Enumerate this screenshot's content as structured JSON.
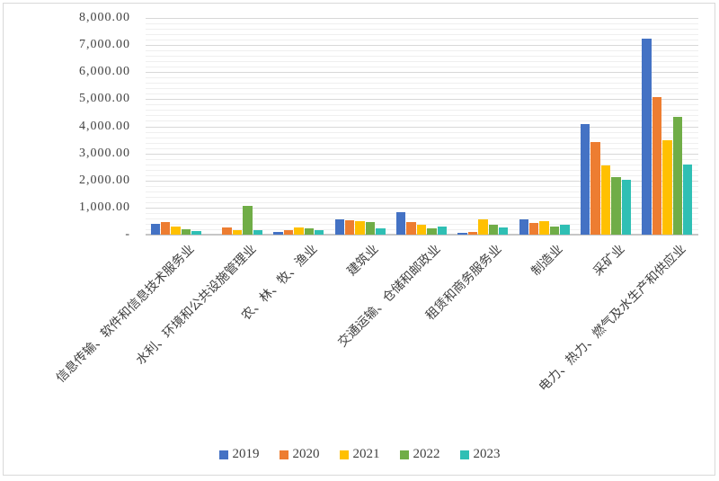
{
  "chart_data": {
    "type": "bar",
    "title": "",
    "xlabel": "",
    "ylabel": "",
    "categories": [
      "信息传输、软件和信息技术服务业",
      "水利、环境和公共设施管理业",
      "农、林、牧、渔业",
      "建筑业",
      "交通运输、仓储和邮政业",
      "租赁和商务服务业",
      "制造业",
      "采矿业",
      "电力、热力、燃气及水生产和供应业"
    ],
    "series": [
      {
        "name": "2019",
        "color": "#4472C4",
        "values": [
          390,
          0,
          100,
          580,
          830,
          60,
          560,
          4100,
          7230
        ]
      },
      {
        "name": "2020",
        "color": "#ED7D31",
        "values": [
          480,
          270,
          150,
          540,
          470,
          90,
          430,
          3420,
          5090
        ]
      },
      {
        "name": "2021",
        "color": "#FFC000",
        "values": [
          300,
          170,
          260,
          500,
          360,
          560,
          500,
          2540,
          3480
        ]
      },
      {
        "name": "2022",
        "color": "#70AD47",
        "values": [
          200,
          1060,
          230,
          460,
          230,
          360,
          310,
          2140,
          4360
        ]
      },
      {
        "name": "2023",
        "color": "#2FBFB4",
        "values": [
          130,
          150,
          160,
          230,
          300,
          280,
          370,
          2040,
          2590
        ]
      }
    ],
    "ylim": [
      0,
      8000
    ],
    "y_major_unit": 1000,
    "y_minor_unit": 200,
    "y_tick_values": [
      0,
      1000,
      2000,
      3000,
      4000,
      5000,
      6000,
      7000,
      8000
    ],
    "y_tick_labels": [
      "-",
      "1,000.00",
      "2,000.00",
      "3,000.00",
      "4,000.00",
      "5,000.00",
      "6,000.00",
      "7,000.00",
      "8,000.00"
    ],
    "grid": true,
    "legend_position": "bottom"
  }
}
